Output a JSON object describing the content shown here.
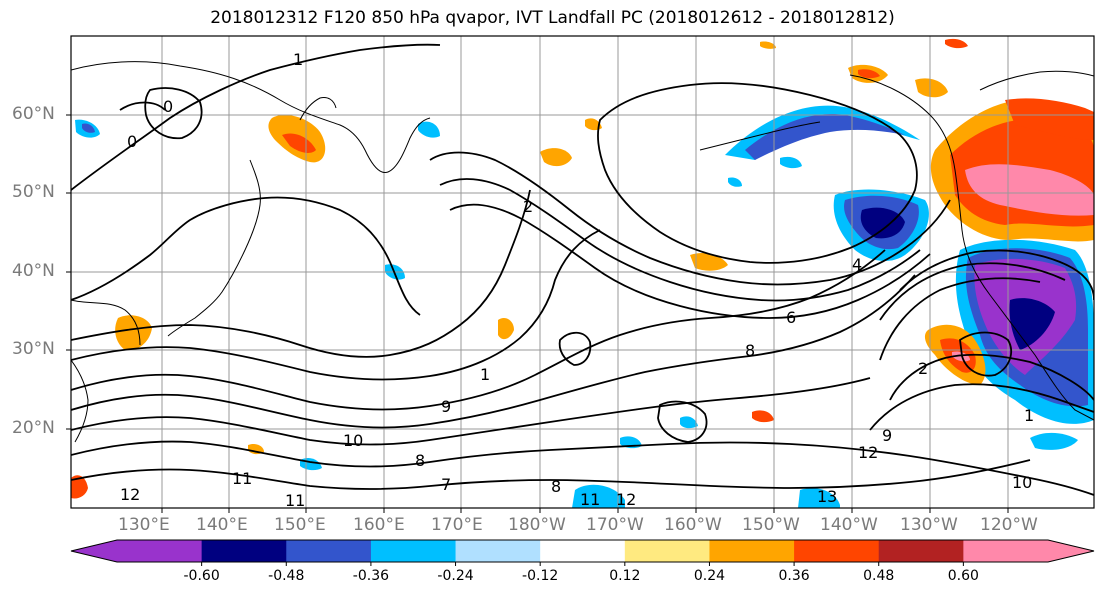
{
  "title": "2018012312 F120 850 hPa qvapor, IVT Landfall PC (2018012612 - 2018012812)",
  "map": {
    "lat_ticks": [
      "60°N",
      "50°N",
      "40°N",
      "30°N",
      "20°N"
    ],
    "lon_ticks": [
      "130°E",
      "140°E",
      "150°E",
      "160°E",
      "170°E",
      "180°W",
      "170°W",
      "160°W",
      "150°W",
      "140°W",
      "130°W",
      "120°W"
    ],
    "contour_labels": [
      "1",
      "0",
      "0",
      "2",
      "4",
      "6",
      "8",
      "1",
      "9",
      "10",
      "8",
      "11",
      "7",
      "8",
      "11",
      "12",
      "13",
      "9",
      "12",
      "2",
      "1",
      "10",
      "11",
      "12"
    ]
  },
  "colorbar": {
    "colors": [
      "#9933cc",
      "#000080",
      "#3355cc",
      "#00bfff",
      "#b0e0ff",
      "#ffffff",
      "#ffea80",
      "#ffa500",
      "#ff4500",
      "#b22222",
      "#ff88aa"
    ],
    "labels": [
      "-0.60",
      "-0.48",
      "-0.36",
      "-0.24",
      "-0.12",
      "0.12",
      "0.24",
      "0.36",
      "0.48",
      "0.60"
    ]
  },
  "palette": {
    "grid": "#999999",
    "contour": "#000000",
    "coast": "#000000"
  }
}
